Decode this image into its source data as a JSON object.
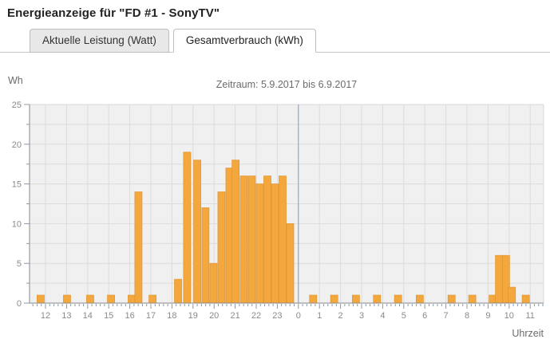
{
  "header": {
    "title": "Energieanzeige für \"FD #1 - SonyTV\""
  },
  "tabs": [
    {
      "label": "Aktuelle Leistung (Watt)",
      "active": false
    },
    {
      "label": "Gesamtverbrauch (kWh)",
      "active": true
    }
  ],
  "chart_data": {
    "type": "bar",
    "title": "Zeitraum: 5.9.2017 bis 6.9.2017",
    "y_axis_unit": "Wh",
    "x_axis_label": "Uhrzeit",
    "ylim": [
      0,
      25
    ],
    "y_tick_values": [
      0,
      5,
      10,
      15,
      20,
      25
    ],
    "y_minor_step": 2.5,
    "x_tick_labels": [
      "12",
      "13",
      "14",
      "15",
      "16",
      "17",
      "18",
      "19",
      "20",
      "21",
      "22",
      "23",
      "0",
      "1",
      "2",
      "3",
      "4",
      "5",
      "6",
      "7",
      "8",
      "9",
      "10",
      "11"
    ],
    "x_minor_ticks_per_hour": 5,
    "grid": true,
    "midnight_separator": true,
    "bars_day1": [
      {
        "h": 11.77,
        "wh": 1
      },
      {
        "h": 13.02,
        "wh": 1
      },
      {
        "h": 14.12,
        "wh": 1
      },
      {
        "h": 15.11,
        "wh": 1
      },
      {
        "h": 16.09,
        "wh": 1
      },
      {
        "h": 16.41,
        "wh": 14
      },
      {
        "h": 17.08,
        "wh": 1
      },
      {
        "h": 18.29,
        "wh": 3
      },
      {
        "h": 18.72,
        "wh": 19
      },
      {
        "h": 19.2,
        "wh": 18
      },
      {
        "h": 19.59,
        "wh": 12
      },
      {
        "h": 19.97,
        "wh": 5
      },
      {
        "h": 20.35,
        "wh": 14
      },
      {
        "h": 20.73,
        "wh": 17
      },
      {
        "h": 21.02,
        "wh": 18
      },
      {
        "h": 21.41,
        "wh": 16
      },
      {
        "h": 21.79,
        "wh": 16
      },
      {
        "h": 22.17,
        "wh": 15
      },
      {
        "h": 22.53,
        "wh": 16
      },
      {
        "h": 22.89,
        "wh": 15
      },
      {
        "h": 23.25,
        "wh": 16
      },
      {
        "h": 23.61,
        "wh": 10
      }
    ],
    "bars_day2": [
      {
        "h": 0.7,
        "wh": 1
      },
      {
        "h": 1.7,
        "wh": 1
      },
      {
        "h": 2.73,
        "wh": 1
      },
      {
        "h": 3.73,
        "wh": 1
      },
      {
        "h": 4.73,
        "wh": 1
      },
      {
        "h": 5.76,
        "wh": 1
      },
      {
        "h": 7.27,
        "wh": 1
      },
      {
        "h": 8.25,
        "wh": 1
      },
      {
        "h": 9.22,
        "wh": 1
      },
      {
        "h": 9.52,
        "wh": 6
      },
      {
        "h": 9.85,
        "wh": 6
      },
      {
        "h": 10.13,
        "wh": 2
      },
      {
        "h": 10.79,
        "wh": 1
      }
    ]
  },
  "colors": {
    "bar_fill": "#f3a73d",
    "bar_stroke": "#e0962e",
    "midnight_line": "#7aa0cc",
    "plot_background": "#f0f0f0",
    "gridline": "#dcdcdc",
    "plot_edge": "#d9d9d9",
    "axis_line": "#888888",
    "tick_mark": "#8899aa",
    "tick_label": "#8a8a8a",
    "chart_text": "#6b6b6b"
  }
}
